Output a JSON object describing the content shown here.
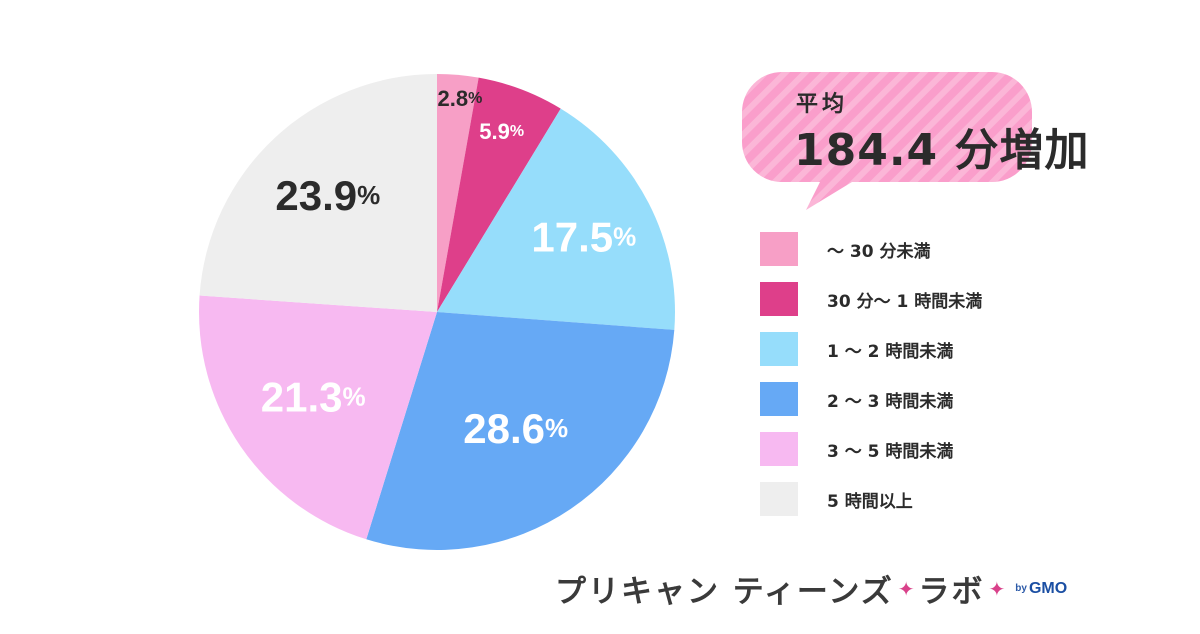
{
  "chart_data": {
    "type": "pie",
    "slices": [
      {
        "label": "～ 30 分未満",
        "value": 2.8,
        "display": "2.8",
        "color": "#f79fc6",
        "text_color": "#2b2b2b"
      },
      {
        "label": "30 分～ 1 時間未満",
        "value": 5.9,
        "display": "5.9",
        "color": "#de3f8a",
        "text_color": "#ffffff"
      },
      {
        "label": "1 ～ 2 時間未満",
        "value": 17.5,
        "display": "17.5",
        "color": "#96ddfb",
        "text_color": "#ffffff"
      },
      {
        "label": "2 ～ 3 時間未満",
        "value": 28.6,
        "display": "28.6",
        "color": "#66a9f5",
        "text_color": "#ffffff"
      },
      {
        "label": "3 ～ 5 時間未満",
        "value": 21.3,
        "display": "21.3",
        "color": "#f7b9f1",
        "text_color": "#ffffff"
      },
      {
        "label": "5 時間以上",
        "value": 23.9,
        "display": "23.9",
        "color": "#eeeeee",
        "text_color": "#2b2b2b"
      }
    ],
    "unit": "%",
    "start_angle_deg": 0,
    "direction": "clockwise",
    "legend_position": "right"
  },
  "callout": {
    "label": "平均",
    "value": "184.4 分増加",
    "bg_color": "#fa9ecb",
    "stripe_color": "#fbb6d7"
  },
  "logo": {
    "main": "プリキャン ティーンズ",
    "star": "✦",
    "sub": "ラボ",
    "by": "by",
    "company": "GMO",
    "star_color": "#d9418a",
    "company_color": "#1b4fa3"
  }
}
